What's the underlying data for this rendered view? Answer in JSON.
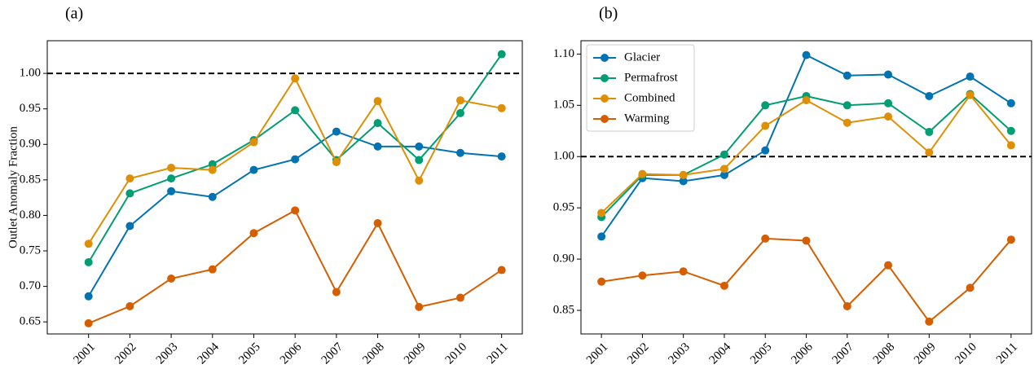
{
  "chart_data": [
    {
      "type": "line",
      "title": "(a)",
      "ylabel": "Outlet Anomaly Fraction",
      "x": [
        2001,
        2002,
        2003,
        2004,
        2005,
        2006,
        2007,
        2008,
        2009,
        2010,
        2011
      ],
      "xlim": [
        2000,
        2011.5
      ],
      "xticks": [
        2001,
        2002,
        2003,
        2004,
        2005,
        2006,
        2007,
        2008,
        2009,
        2010,
        2011
      ],
      "ylim": [
        0.633,
        1.046
      ],
      "yticks": [
        0.65,
        {
          "value": 0.7,
          "label": "0.70"
        },
        0.75,
        {
          "value": 0.8,
          "label": "0.80"
        },
        0.85,
        {
          "value": 0.9,
          "label": "0.90"
        },
        0.95,
        {
          "value": 1,
          "label": "1.00"
        }
      ],
      "hline": 1,
      "legend": false,
      "series": [
        {
          "name": "Glacier",
          "color": "#0173b2",
          "values": [
            0.686,
            0.785,
            0.834,
            0.826,
            0.864,
            0.879,
            0.918,
            0.897,
            0.897,
            0.888,
            0.883
          ]
        },
        {
          "name": "Permafrost",
          "color": "#029e73",
          "values": [
            0.734,
            0.831,
            0.852,
            0.872,
            0.906,
            0.948,
            0.878,
            0.93,
            0.878,
            0.944,
            1.027
          ]
        },
        {
          "name": "Combined",
          "color": "#de8f05",
          "values": [
            0.76,
            0.852,
            0.867,
            0.864,
            0.903,
            0.993,
            0.875,
            0.961,
            0.849,
            0.962,
            0.951
          ]
        },
        {
          "name": "Warming",
          "color": "#d55e00",
          "values": [
            0.648,
            0.672,
            0.711,
            0.724,
            0.775,
            0.807,
            0.692,
            0.789,
            0.671,
            0.684,
            0.723
          ]
        }
      ]
    },
    {
      "type": "line",
      "title": "(b)",
      "x": [
        2001,
        2002,
        2003,
        2004,
        2005,
        2006,
        2007,
        2008,
        2009,
        2010,
        2011
      ],
      "xlim": [
        2000.5,
        2011.5
      ],
      "xticks": [
        2001,
        2002,
        2003,
        2004,
        2005,
        2006,
        2007,
        2008,
        2009,
        2010,
        2011
      ],
      "ylim": [
        0.827,
        1.113
      ],
      "yticks": [
        0.85,
        {
          "value": 0.9,
          "label": "0.90"
        },
        0.95,
        {
          "value": 1,
          "label": "1.00"
        },
        1.05,
        {
          "value": 1.1,
          "label": "1.10"
        }
      ],
      "hline": 1,
      "legend": "upper left",
      "series": [
        {
          "name": "Glacier",
          "color": "#0173b2",
          "values": [
            0.922,
            0.979,
            0.976,
            0.982,
            1.006,
            1.099,
            1.079,
            1.08,
            1.059,
            1.078,
            1.052
          ]
        },
        {
          "name": "Permafrost",
          "color": "#029e73",
          "values": [
            0.941,
            0.982,
            0.982,
            1.002,
            1.05,
            1.059,
            1.05,
            1.052,
            1.024,
            1.061,
            1.025
          ]
        },
        {
          "name": "Combined",
          "color": "#de8f05",
          "values": [
            0.945,
            0.983,
            0.982,
            0.988,
            1.03,
            1.055,
            1.033,
            1.039,
            1.004,
            1.06,
            1.011
          ]
        },
        {
          "name": "Warming",
          "color": "#d55e00",
          "values": [
            0.878,
            0.884,
            0.888,
            0.874,
            0.92,
            0.918,
            0.854,
            0.894,
            0.839,
            0.872,
            0.919
          ]
        }
      ]
    }
  ]
}
